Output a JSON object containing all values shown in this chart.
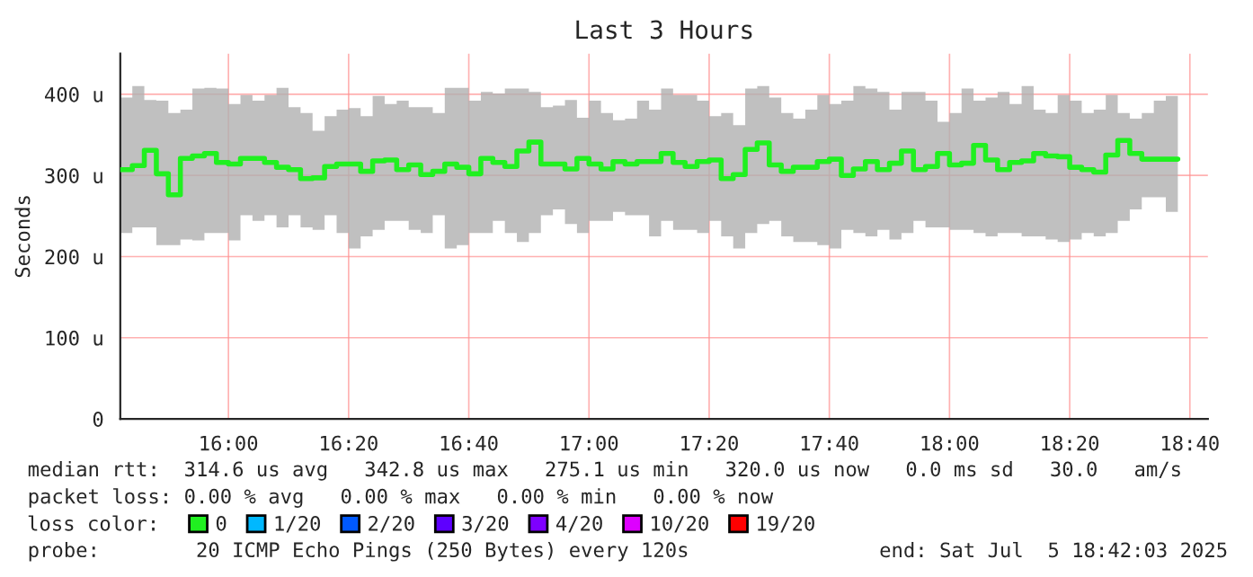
{
  "chart_data": {
    "type": "step",
    "title": "Last 3 Hours",
    "ylabel": "Seconds",
    "x": [
      "2025-07-05T15:42",
      "2025-07-05T15:44",
      "2025-07-05T15:46",
      "2025-07-05T15:48",
      "2025-07-05T15:50",
      "2025-07-05T15:52",
      "2025-07-05T15:54",
      "2025-07-05T15:56",
      "2025-07-05T15:58",
      "2025-07-05T16:00",
      "2025-07-05T16:02",
      "2025-07-05T16:04",
      "2025-07-05T16:06",
      "2025-07-05T16:08",
      "2025-07-05T16:10",
      "2025-07-05T16:12",
      "2025-07-05T16:14",
      "2025-07-05T16:16",
      "2025-07-05T16:18",
      "2025-07-05T16:20",
      "2025-07-05T16:22",
      "2025-07-05T16:24",
      "2025-07-05T16:26",
      "2025-07-05T16:28",
      "2025-07-05T16:30",
      "2025-07-05T16:32",
      "2025-07-05T16:34",
      "2025-07-05T16:36",
      "2025-07-05T16:38",
      "2025-07-05T16:40",
      "2025-07-05T16:42",
      "2025-07-05T16:44",
      "2025-07-05T16:46",
      "2025-07-05T16:48",
      "2025-07-05T16:50",
      "2025-07-05T16:52",
      "2025-07-05T16:54",
      "2025-07-05T16:56",
      "2025-07-05T16:58",
      "2025-07-05T17:00",
      "2025-07-05T17:02",
      "2025-07-05T17:04",
      "2025-07-05T17:06",
      "2025-07-05T17:08",
      "2025-07-05T17:10",
      "2025-07-05T17:12",
      "2025-07-05T17:14",
      "2025-07-05T17:16",
      "2025-07-05T17:18",
      "2025-07-05T17:20",
      "2025-07-05T17:22",
      "2025-07-05T17:24",
      "2025-07-05T17:26",
      "2025-07-05T17:28",
      "2025-07-05T17:30",
      "2025-07-05T17:32",
      "2025-07-05T17:34",
      "2025-07-05T17:36",
      "2025-07-05T17:38",
      "2025-07-05T17:40",
      "2025-07-05T17:42",
      "2025-07-05T17:44",
      "2025-07-05T17:46",
      "2025-07-05T17:48",
      "2025-07-05T17:50",
      "2025-07-05T17:52",
      "2025-07-05T17:54",
      "2025-07-05T17:56",
      "2025-07-05T17:58",
      "2025-07-05T18:00",
      "2025-07-05T18:02",
      "2025-07-05T18:04",
      "2025-07-05T18:06",
      "2025-07-05T18:08",
      "2025-07-05T18:10",
      "2025-07-05T18:12",
      "2025-07-05T18:14",
      "2025-07-05T18:16",
      "2025-07-05T18:18",
      "2025-07-05T18:20",
      "2025-07-05T18:22",
      "2025-07-05T18:24",
      "2025-07-05T18:26",
      "2025-07-05T18:28",
      "2025-07-05T18:30",
      "2025-07-05T18:32",
      "2025-07-05T18:34",
      "2025-07-05T18:36",
      "2025-07-05T18:38"
    ],
    "series": [
      {
        "name": "0",
        "color": "#20f020",
        "values": [
          307,
          312,
          331,
          302,
          276,
          321,
          324,
          327,
          316,
          314,
          321,
          321,
          316,
          310,
          307,
          296,
          297,
          311,
          314,
          314,
          305,
          318,
          319,
          307,
          313,
          301,
          305,
          314,
          310,
          302,
          321,
          316,
          311,
          330,
          341,
          314,
          314,
          308,
          321,
          314,
          308,
          317,
          314,
          317,
          317,
          327,
          316,
          311,
          317,
          319,
          296,
          301,
          332,
          340,
          313,
          305,
          310,
          310,
          317,
          320,
          300,
          308,
          317,
          307,
          315,
          330,
          307,
          311,
          327,
          313,
          315,
          337,
          319,
          307,
          316,
          318,
          327,
          324,
          323,
          310,
          307,
          304,
          325,
          343,
          327,
          320,
          320,
          320,
          320
        ],
        "upper": [
          396,
          410,
          393,
          392,
          377,
          381,
          407,
          408,
          407,
          388,
          399,
          392,
          399,
          408,
          384,
          377,
          355,
          373,
          381,
          383,
          373,
          398,
          388,
          392,
          384,
          384,
          377,
          408,
          408,
          392,
          403,
          401,
          407,
          407,
          403,
          384,
          386,
          393,
          371,
          392,
          377,
          368,
          370,
          392,
          381,
          407,
          399,
          399,
          392,
          373,
          377,
          362,
          407,
          410,
          396,
          377,
          370,
          381,
          399,
          388,
          392,
          410,
          407,
          403,
          381,
          403,
          403,
          392,
          366,
          377,
          407,
          392,
          396,
          403,
          388,
          410,
          381,
          377,
          399,
          392,
          377,
          381,
          399,
          377,
          370,
          377,
          392,
          398,
          399
        ],
        "lower": [
          229,
          236,
          236,
          214,
          214,
          221,
          220,
          229,
          229,
          220,
          251,
          244,
          251,
          236,
          251,
          236,
          233,
          251,
          229,
          210,
          225,
          233,
          244,
          244,
          233,
          229,
          251,
          210,
          214,
          229,
          229,
          244,
          229,
          218,
          229,
          251,
          258,
          240,
          229,
          244,
          244,
          255,
          251,
          251,
          225,
          244,
          233,
          233,
          229,
          244,
          225,
          210,
          229,
          240,
          244,
          225,
          218,
          218,
          214,
          210,
          233,
          229,
          225,
          233,
          221,
          229,
          244,
          236,
          236,
          233,
          233,
          229,
          225,
          229,
          229,
          225,
          225,
          221,
          218,
          221,
          229,
          225,
          229,
          244,
          258,
          273,
          273,
          255,
          255
        ]
      },
      {
        "name": "1/20",
        "color": "#00b8ff",
        "values": [
          null,
          null,
          null,
          null,
          null,
          null,
          null,
          null,
          null,
          null,
          null,
          null,
          null,
          null,
          null,
          null,
          null,
          null,
          null,
          null,
          null,
          null,
          null,
          null,
          null,
          null,
          null,
          null,
          null,
          null,
          null,
          null,
          null,
          null,
          null,
          null,
          null,
          null,
          null,
          null,
          null,
          null,
          null,
          null,
          null,
          null,
          null,
          null,
          null,
          null,
          null,
          null,
          null,
          null,
          null,
          null,
          null,
          null,
          null,
          null,
          null,
          null,
          null,
          null,
          null,
          null,
          null,
          null,
          null,
          null,
          null,
          null,
          null,
          null,
          null,
          null,
          null,
          null,
          null,
          null,
          null,
          null,
          null,
          null,
          null,
          null,
          null,
          null,
          null
        ]
      },
      {
        "name": "2/20",
        "color": "#0059ff",
        "values": [
          null,
          null,
          null,
          null,
          null,
          null,
          null,
          null,
          null,
          null,
          null,
          null,
          null,
          null,
          null,
          null,
          null,
          null,
          null,
          null,
          null,
          null,
          null,
          null,
          null,
          null,
          null,
          null,
          null,
          null,
          null,
          null,
          null,
          null,
          null,
          null,
          null,
          null,
          null,
          null,
          null,
          null,
          null,
          null,
          null,
          null,
          null,
          null,
          null,
          null,
          null,
          null,
          null,
          null,
          null,
          null,
          null,
          null,
          null,
          null,
          null,
          null,
          null,
          null,
          null,
          null,
          null,
          null,
          null,
          null,
          null,
          null,
          null,
          null,
          null,
          null,
          null,
          null,
          null,
          null,
          null,
          null,
          null,
          null,
          null,
          null,
          null,
          null,
          null
        ]
      },
      {
        "name": "3/20",
        "color": "#5e00ff",
        "values": [
          null,
          null,
          null,
          null,
          null,
          null,
          null,
          null,
          null,
          null,
          null,
          null,
          null,
          null,
          null,
          null,
          null,
          null,
          null,
          null,
          null,
          null,
          null,
          null,
          null,
          null,
          null,
          null,
          null,
          null,
          null,
          null,
          null,
          null,
          null,
          null,
          null,
          null,
          null,
          null,
          null,
          null,
          null,
          null,
          null,
          null,
          null,
          null,
          null,
          null,
          null,
          null,
          null,
          null,
          null,
          null,
          null,
          null,
          null,
          null,
          null,
          null,
          null,
          null,
          null,
          null,
          null,
          null,
          null,
          null,
          null,
          null,
          null,
          null,
          null,
          null,
          null,
          null,
          null,
          null,
          null,
          null,
          null,
          null,
          null,
          null,
          null,
          null,
          null
        ]
      },
      {
        "name": "4/20",
        "color": "#7e00ff",
        "values": [
          null,
          null,
          null,
          null,
          null,
          null,
          null,
          null,
          null,
          null,
          null,
          null,
          null,
          null,
          null,
          null,
          null,
          null,
          null,
          null,
          null,
          null,
          null,
          null,
          null,
          null,
          null,
          null,
          null,
          null,
          null,
          null,
          null,
          null,
          null,
          null,
          null,
          null,
          null,
          null,
          null,
          null,
          null,
          null,
          null,
          null,
          null,
          null,
          null,
          null,
          null,
          null,
          null,
          null,
          null,
          null,
          null,
          null,
          null,
          null,
          null,
          null,
          null,
          null,
          null,
          null,
          null,
          null,
          null,
          null,
          null,
          null,
          null,
          null,
          null,
          null,
          null,
          null,
          null,
          null,
          null,
          null,
          null,
          null,
          null,
          null,
          null,
          null,
          null
        ]
      },
      {
        "name": "10/20",
        "color": "#dd00ff",
        "values": [
          null,
          null,
          null,
          null,
          null,
          null,
          null,
          null,
          null,
          null,
          null,
          null,
          null,
          null,
          null,
          null,
          null,
          null,
          null,
          null,
          null,
          null,
          null,
          null,
          null,
          null,
          null,
          null,
          null,
          null,
          null,
          null,
          null,
          null,
          null,
          null,
          null,
          null,
          null,
          null,
          null,
          null,
          null,
          null,
          null,
          null,
          null,
          null,
          null,
          null,
          null,
          null,
          null,
          null,
          null,
          null,
          null,
          null,
          null,
          null,
          null,
          null,
          null,
          null,
          null,
          null,
          null,
          null,
          null,
          null,
          null,
          null,
          null,
          null,
          null,
          null,
          null,
          null,
          null,
          null,
          null,
          null,
          null,
          null,
          null,
          null,
          null,
          null,
          null
        ]
      },
      {
        "name": "19/20",
        "color": "#ff0000",
        "values": [
          null,
          null,
          null,
          null,
          null,
          null,
          null,
          null,
          null,
          null,
          null,
          null,
          null,
          null,
          null,
          null,
          null,
          null,
          null,
          null,
          null,
          null,
          null,
          null,
          null,
          null,
          null,
          null,
          null,
          null,
          null,
          null,
          null,
          null,
          null,
          null,
          null,
          null,
          null,
          null,
          null,
          null,
          null,
          null,
          null,
          null,
          null,
          null,
          null,
          null,
          null,
          null,
          null,
          null,
          null,
          null,
          null,
          null,
          null,
          null,
          null,
          null,
          null,
          null,
          null,
          null,
          null,
          null,
          null,
          null,
          null,
          null,
          null,
          null,
          null,
          null,
          null,
          null,
          null,
          null,
          null,
          null,
          null,
          null,
          null,
          null,
          null,
          null,
          null
        ]
      }
    ],
    "legend_title": "loss color:",
    "legend": "bottom",
    "ylim": [
      0,
      450
    ],
    "yticks": [
      0,
      {
        "value": 100,
        "label": "100 u"
      },
      {
        "value": 200,
        "label": "200 u"
      },
      {
        "value": 300,
        "label": "300 u"
      },
      {
        "value": 400,
        "label": "400 u"
      }
    ],
    "xlim": [
      "2025-07-05T15:42",
      "2025-07-05T18:43"
    ],
    "xticks": [
      {
        "value": "2025-07-05T16:00",
        "label": "16:00"
      },
      {
        "value": "2025-07-05T16:20",
        "label": "16:20"
      },
      {
        "value": "2025-07-05T16:40",
        "label": "16:40"
      },
      {
        "value": "2025-07-05T17:00",
        "label": "17:00"
      },
      {
        "value": "2025-07-05T17:20",
        "label": "17:20"
      },
      {
        "value": "2025-07-05T17:40",
        "label": "17:40"
      },
      {
        "value": "2025-07-05T18:00",
        "label": "18:00"
      },
      {
        "value": "2025-07-05T18:20",
        "label": "18:20"
      },
      {
        "value": "2025-07-05T18:40",
        "label": "18:40"
      }
    ],
    "grid": true,
    "annotations": [
      "median rtt:  314.6 us avg   342.8 us max   275.1 us min   320.0 us now   0.0 ms sd   30.0   am/s",
      "packet loss: 0.00 % avg   0.00 % max   0.00 % min   0.00 % now",
      "probe:        20 ICMP Echo Pings (250 Bytes) every 120s",
      "end: Sat Jul  5 18:42:03 2025"
    ]
  }
}
